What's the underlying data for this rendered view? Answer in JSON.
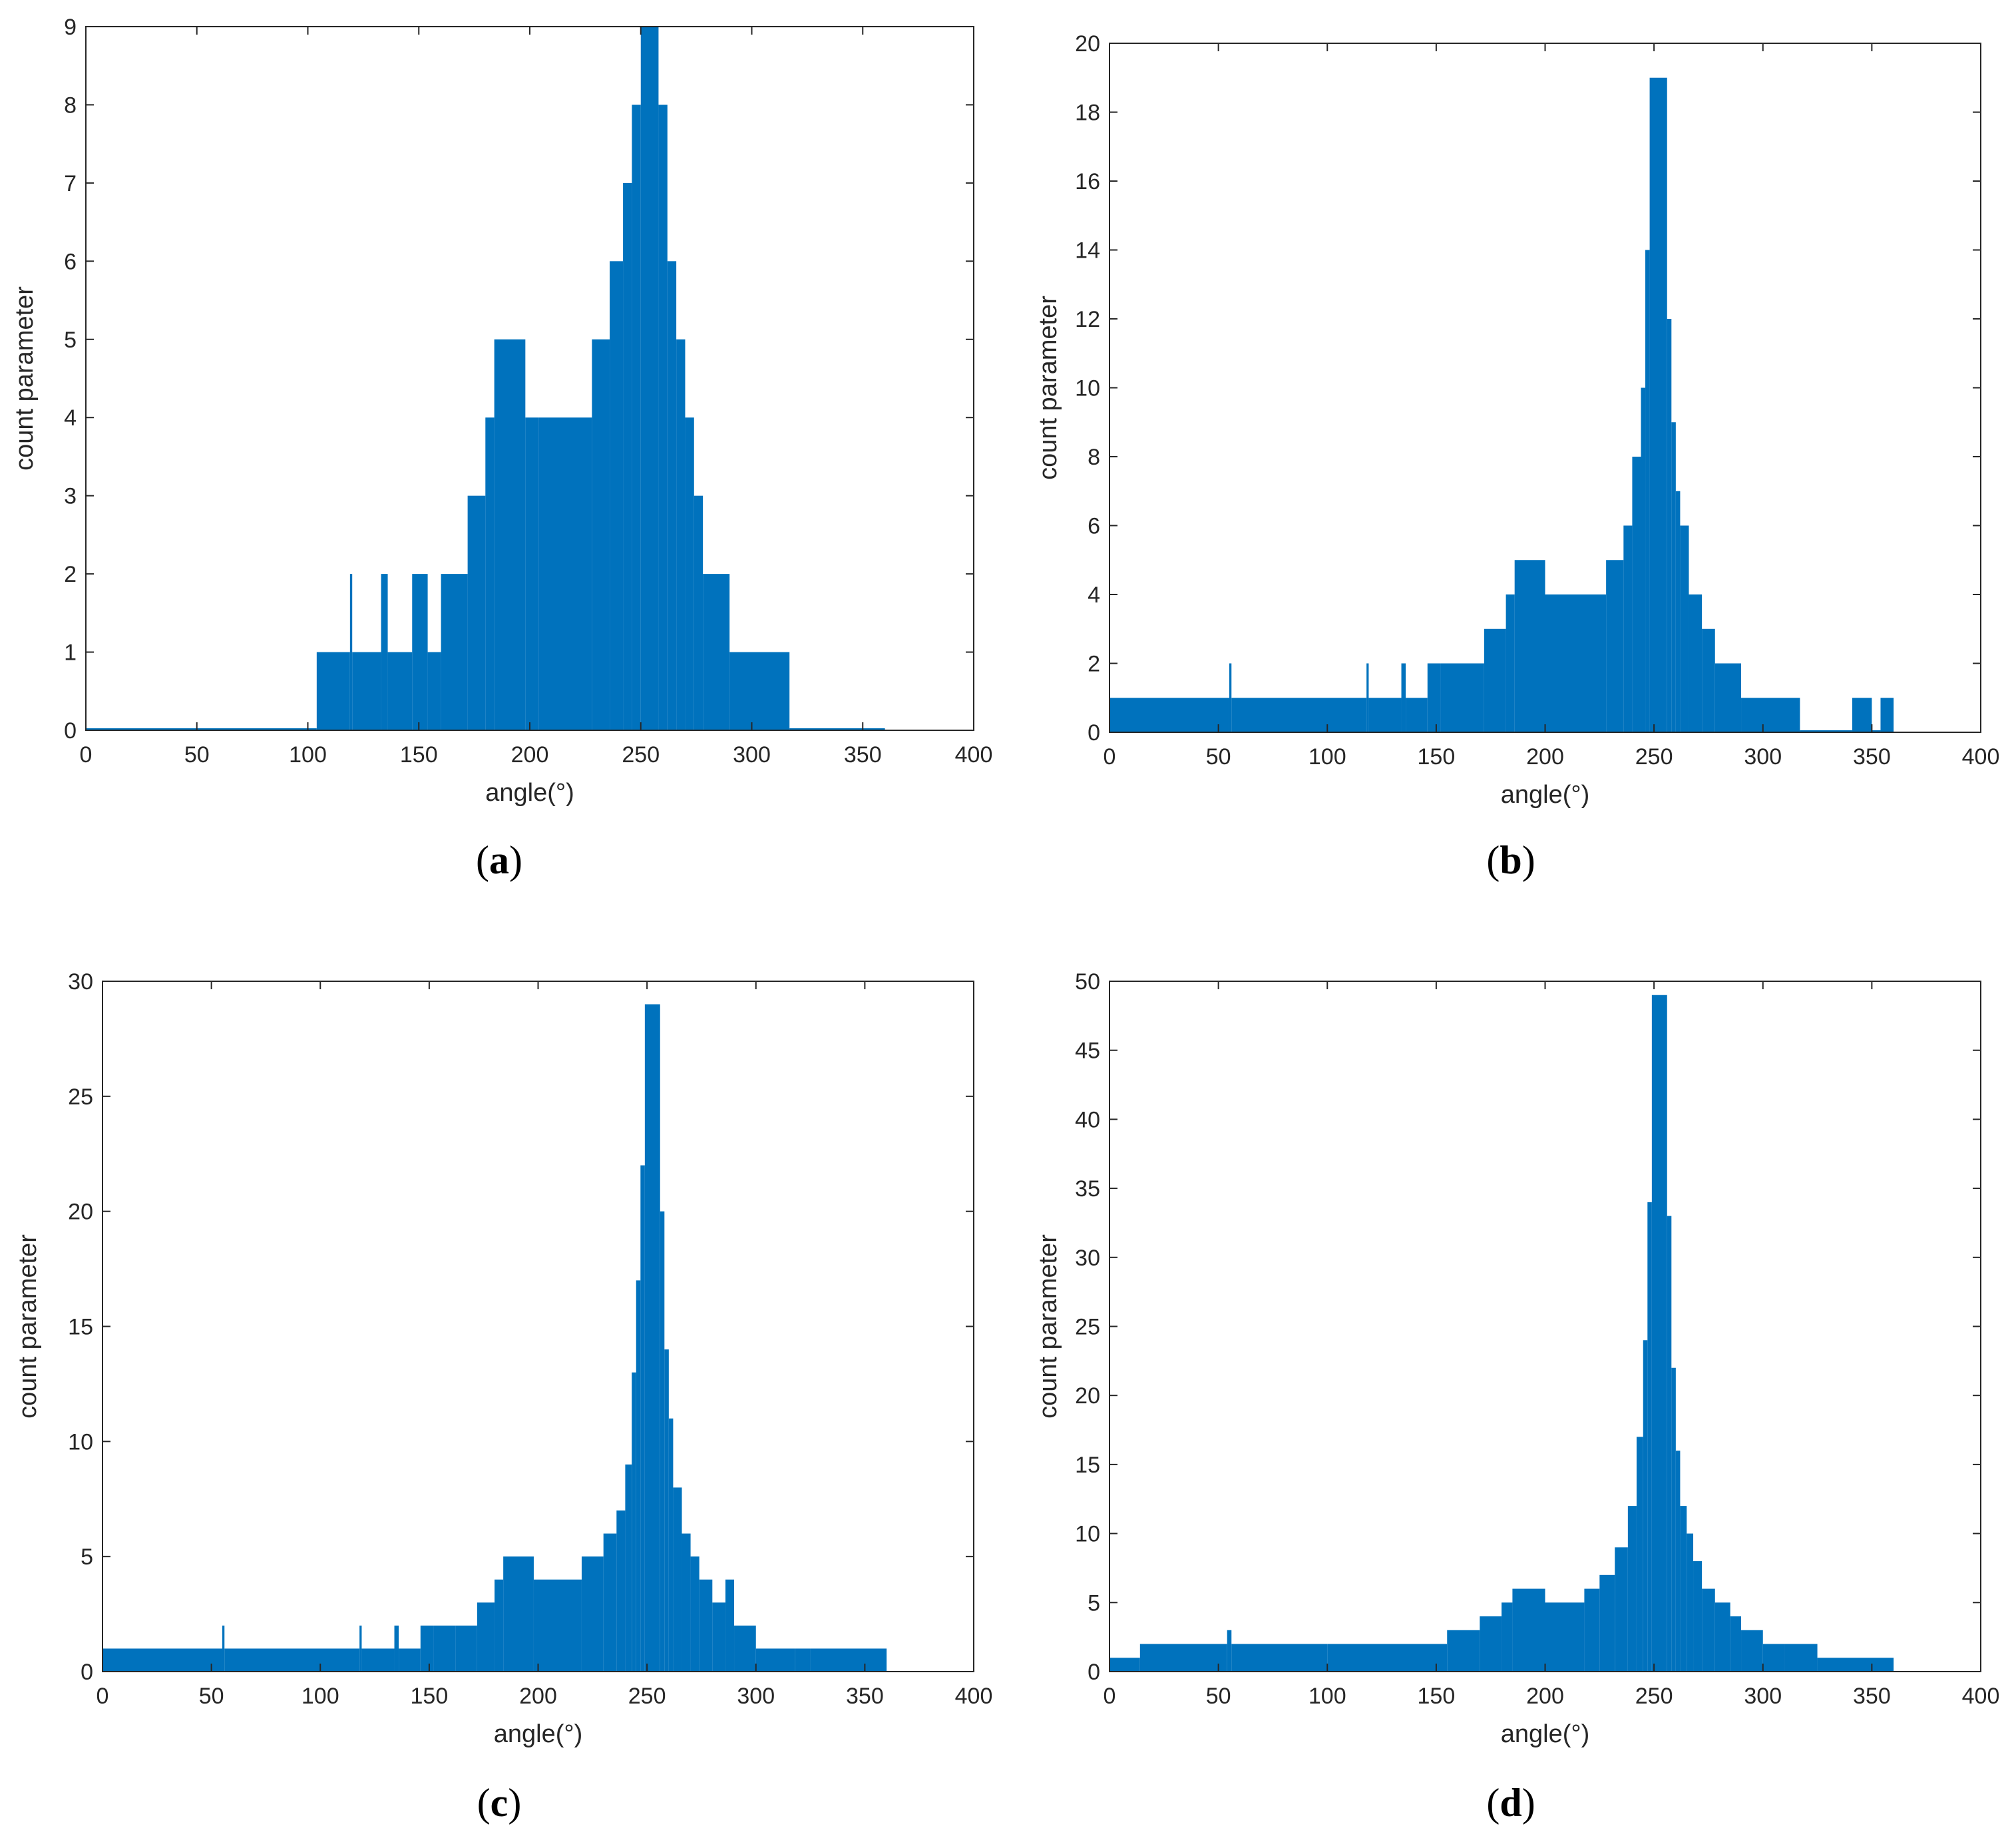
{
  "colors": {
    "series": "#0072BD",
    "axis": "#262626",
    "background": "#ffffff"
  },
  "chart_data": [
    {
      "panel": "a",
      "type": "bar",
      "caption": "a",
      "xlabel": "angle(°)",
      "ylabel": "count parameter",
      "xlim": [
        0,
        400
      ],
      "ylim": [
        0,
        9
      ],
      "xticks": [
        0,
        50,
        100,
        150,
        200,
        250,
        300,
        350,
        400
      ],
      "yticks": [
        0,
        1,
        2,
        3,
        4,
        5,
        6,
        7,
        8,
        9
      ],
      "segments": [
        [
          0,
          104,
          0
        ],
        [
          104,
          119,
          1
        ],
        [
          119,
          120,
          2
        ],
        [
          120,
          133,
          1
        ],
        [
          133,
          136,
          2
        ],
        [
          136,
          147,
          1
        ],
        [
          147,
          154,
          2
        ],
        [
          154,
          160,
          1
        ],
        [
          160,
          172,
          2
        ],
        [
          172,
          180,
          3
        ],
        [
          180,
          184,
          4
        ],
        [
          184,
          198,
          5
        ],
        [
          198,
          204,
          4
        ],
        [
          204,
          228,
          4
        ],
        [
          228,
          236,
          5
        ],
        [
          236,
          242,
          6
        ],
        [
          242,
          246,
          7
        ],
        [
          246,
          250,
          8
        ],
        [
          250,
          258,
          9
        ],
        [
          258,
          262,
          8
        ],
        [
          262,
          266,
          6
        ],
        [
          266,
          270,
          5
        ],
        [
          270,
          274,
          4
        ],
        [
          274,
          278,
          3
        ],
        [
          278,
          290,
          2
        ],
        [
          290,
          317,
          1
        ],
        [
          317,
          360,
          0
        ]
      ]
    },
    {
      "panel": "b",
      "type": "bar",
      "caption": "b",
      "xlabel": "angle(°)",
      "ylabel": "count parameter",
      "xlim": [
        0,
        400
      ],
      "ylim": [
        0,
        20
      ],
      "xticks": [
        0,
        50,
        100,
        150,
        200,
        250,
        300,
        350,
        400
      ],
      "yticks": [
        0,
        2,
        4,
        6,
        8,
        10,
        12,
        14,
        16,
        18,
        20
      ],
      "segments": [
        [
          0,
          55,
          1
        ],
        [
          55,
          56,
          2
        ],
        [
          56,
          118,
          1
        ],
        [
          118,
          119,
          2
        ],
        [
          119,
          134,
          1
        ],
        [
          134,
          136,
          2
        ],
        [
          136,
          146,
          1
        ],
        [
          146,
          152,
          2
        ],
        [
          152,
          172,
          2
        ],
        [
          172,
          182,
          3
        ],
        [
          182,
          186,
          4
        ],
        [
          186,
          200,
          5
        ],
        [
          200,
          228,
          4
        ],
        [
          228,
          236,
          5
        ],
        [
          236,
          240,
          6
        ],
        [
          240,
          244,
          8
        ],
        [
          244,
          246,
          10
        ],
        [
          246,
          248,
          14
        ],
        [
          248,
          256,
          19
        ],
        [
          256,
          258,
          12
        ],
        [
          258,
          260,
          9
        ],
        [
          260,
          262,
          7
        ],
        [
          262,
          266,
          6
        ],
        [
          266,
          272,
          4
        ],
        [
          272,
          278,
          3
        ],
        [
          278,
          290,
          2
        ],
        [
          290,
          317,
          1
        ],
        [
          317,
          341,
          0
        ],
        [
          341,
          350,
          1
        ],
        [
          350,
          354,
          0
        ],
        [
          354,
          360,
          1
        ]
      ]
    },
    {
      "panel": "c",
      "type": "bar",
      "caption": "c",
      "xlabel": "angle(°)",
      "ylabel": "count parameter",
      "xlim": [
        0,
        400
      ],
      "ylim": [
        0,
        30
      ],
      "xticks": [
        0,
        50,
        100,
        150,
        200,
        250,
        300,
        350,
        400
      ],
      "yticks": [
        0,
        5,
        10,
        15,
        20,
        25,
        30
      ],
      "segments": [
        [
          0,
          55,
          1
        ],
        [
          55,
          56,
          2
        ],
        [
          56,
          118,
          1
        ],
        [
          118,
          119,
          2
        ],
        [
          119,
          134,
          1
        ],
        [
          134,
          136,
          2
        ],
        [
          136,
          146,
          1
        ],
        [
          146,
          152,
          2
        ],
        [
          152,
          162,
          2
        ],
        [
          162,
          172,
          2
        ],
        [
          172,
          180,
          3
        ],
        [
          180,
          184,
          4
        ],
        [
          184,
          198,
          5
        ],
        [
          198,
          220,
          4
        ],
        [
          220,
          230,
          5
        ],
        [
          230,
          236,
          6
        ],
        [
          236,
          240,
          7
        ],
        [
          240,
          243,
          9
        ],
        [
          243,
          245,
          13
        ],
        [
          245,
          247,
          17
        ],
        [
          247,
          249,
          22
        ],
        [
          249,
          256,
          29
        ],
        [
          256,
          258,
          20
        ],
        [
          258,
          260,
          14
        ],
        [
          260,
          262,
          11
        ],
        [
          262,
          266,
          8
        ],
        [
          266,
          270,
          6
        ],
        [
          270,
          274,
          5
        ],
        [
          274,
          280,
          4
        ],
        [
          280,
          286,
          3
        ],
        [
          286,
          290,
          4
        ],
        [
          290,
          300,
          2
        ],
        [
          300,
          318,
          1
        ],
        [
          318,
          325,
          1
        ],
        [
          325,
          360,
          1
        ]
      ]
    },
    {
      "panel": "d",
      "type": "bar",
      "caption": "d",
      "xlabel": "angle(°)",
      "ylabel": "count parameter",
      "xlim": [
        0,
        400
      ],
      "ylim": [
        0,
        50
      ],
      "xticks": [
        0,
        50,
        100,
        150,
        200,
        250,
        300,
        350,
        400
      ],
      "yticks": [
        0,
        5,
        10,
        15,
        20,
        25,
        30,
        35,
        40,
        45,
        50
      ],
      "segments": [
        [
          0,
          14,
          1
        ],
        [
          14,
          54,
          2
        ],
        [
          54,
          56,
          3
        ],
        [
          56,
          100,
          2
        ],
        [
          100,
          155,
          2
        ],
        [
          155,
          170,
          3
        ],
        [
          170,
          180,
          4
        ],
        [
          180,
          185,
          5
        ],
        [
          185,
          200,
          6
        ],
        [
          200,
          218,
          5
        ],
        [
          218,
          225,
          6
        ],
        [
          225,
          232,
          7
        ],
        [
          232,
          238,
          9
        ],
        [
          238,
          242,
          12
        ],
        [
          242,
          245,
          17
        ],
        [
          245,
          247,
          24
        ],
        [
          247,
          249,
          34
        ],
        [
          249,
          256,
          49
        ],
        [
          256,
          258,
          33
        ],
        [
          258,
          260,
          22
        ],
        [
          260,
          262,
          16
        ],
        [
          262,
          265,
          12
        ],
        [
          265,
          268,
          10
        ],
        [
          268,
          272,
          8
        ],
        [
          272,
          278,
          6
        ],
        [
          278,
          285,
          5
        ],
        [
          285,
          290,
          4
        ],
        [
          290,
          300,
          3
        ],
        [
          300,
          310,
          2
        ],
        [
          310,
          325,
          2
        ],
        [
          325,
          360,
          1
        ]
      ]
    }
  ]
}
